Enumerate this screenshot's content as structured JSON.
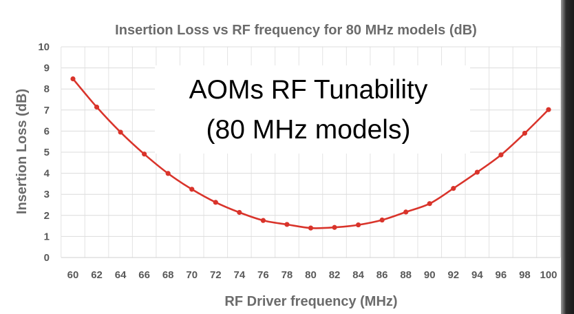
{
  "chart_data": {
    "type": "line",
    "title": "Insertion Loss vs RF frequency for 80 MHz models (dB)",
    "xlabel": "RF Driver frequency (MHz)",
    "ylabel": "Insertion Loss (dB)",
    "x": [
      60,
      62,
      64,
      66,
      68,
      70,
      72,
      74,
      76,
      78,
      80,
      82,
      84,
      86,
      88,
      90,
      92,
      94,
      96,
      98,
      100
    ],
    "y": [
      8.48,
      7.14,
      5.95,
      4.91,
      3.99,
      3.24,
      2.62,
      2.14,
      1.76,
      1.57,
      1.4,
      1.43,
      1.55,
      1.78,
      2.16,
      2.56,
      3.28,
      4.05,
      4.87,
      5.9,
      7.02
    ],
    "xlim": [
      60,
      100
    ],
    "ylim": [
      0,
      10
    ],
    "yticks": [
      0,
      1,
      2,
      3,
      4,
      5,
      6,
      7,
      8,
      9,
      10
    ],
    "grid": true,
    "line_color": "#d9342b",
    "annotation": [
      "AOMs RF Tunability",
      "(80 MHz models)"
    ]
  }
}
